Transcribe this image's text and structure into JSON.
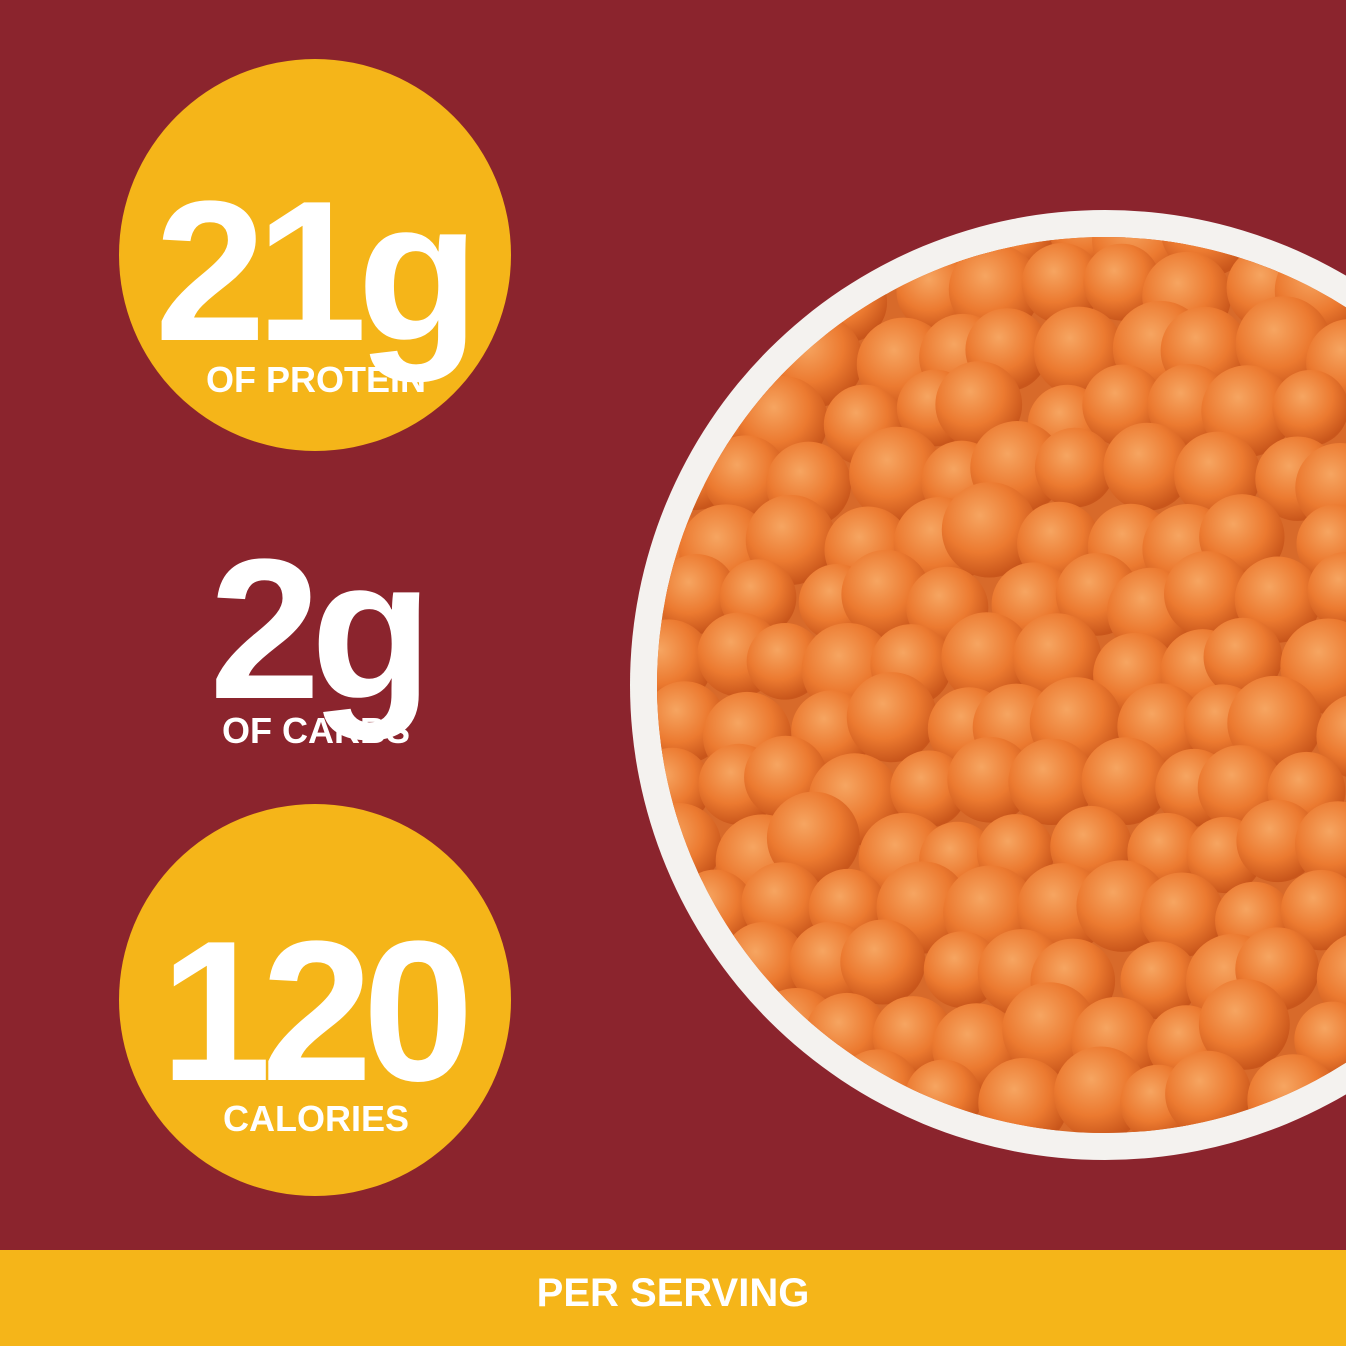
{
  "stats": [
    {
      "value": "21g",
      "label": "OF PROTEIN"
    },
    {
      "value": "2g",
      "label": "OF CARBS"
    },
    {
      "value": "120",
      "label": "CALORIES"
    }
  ],
  "footer": "PER SERVING"
}
